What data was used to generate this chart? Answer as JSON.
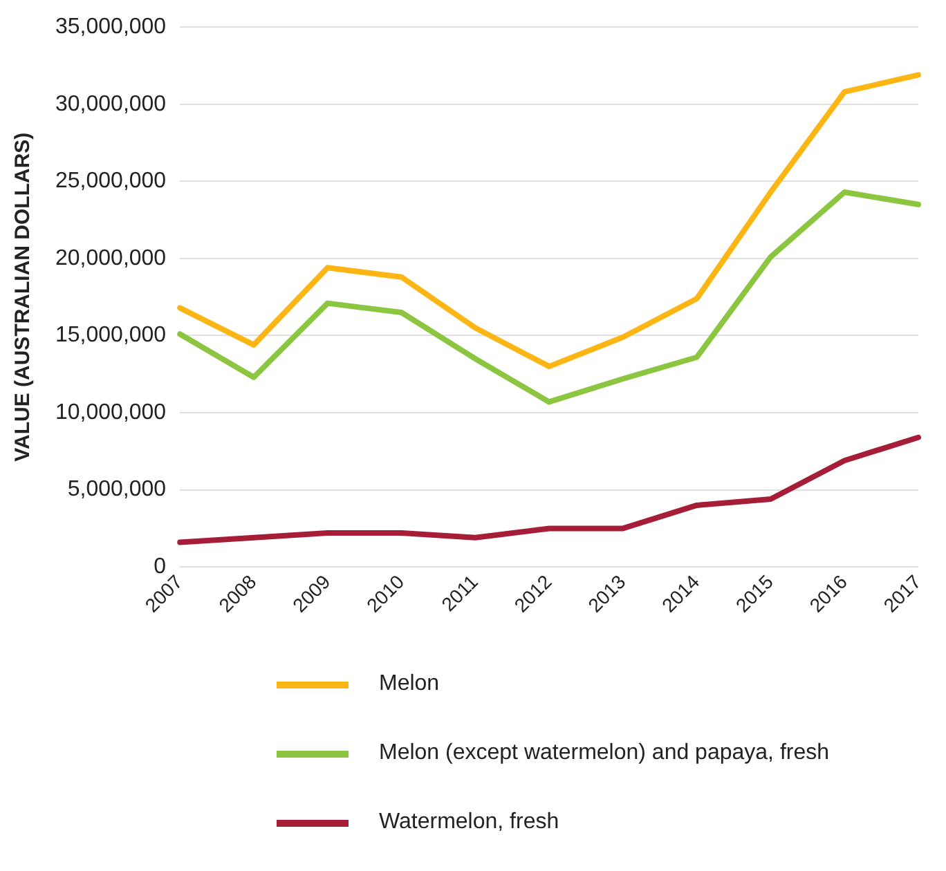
{
  "chart_data": {
    "type": "line",
    "ylabel": "VALUE (AUSTRALIAN DOLLARS)",
    "categories": [
      "2007",
      "2008",
      "2009",
      "2010",
      "2011",
      "2012",
      "2013",
      "2014",
      "2015",
      "2016",
      "2017"
    ],
    "series": [
      {
        "name": "Melon",
        "color": "#fbb616",
        "values": [
          16800000,
          14400000,
          19400000,
          18800000,
          15500000,
          13000000,
          14900000,
          17400000,
          24300000,
          30800000,
          31900000
        ]
      },
      {
        "name": "Melon (except watermelon) and papaya, fresh",
        "color": "#8cc540",
        "values": [
          15100000,
          12300000,
          17100000,
          16500000,
          13500000,
          10700000,
          12200000,
          13600000,
          20100000,
          24300000,
          23500000
        ]
      },
      {
        "name": "Watermelon, fresh",
        "color": "#a51d36",
        "values": [
          1600000,
          1900000,
          2200000,
          2200000,
          1900000,
          2500000,
          2500000,
          4000000,
          4400000,
          6900000,
          8400000
        ]
      }
    ],
    "ylim": [
      0,
      35000000
    ],
    "yticks": [
      0,
      {
        "value": 5000000,
        "label": "5,000,000"
      },
      {
        "value": 10000000,
        "label": "10,000,000"
      },
      {
        "value": 15000000,
        "label": "15,000,000"
      },
      {
        "value": 20000000,
        "label": "20,000,000"
      },
      {
        "value": 25000000,
        "label": "25,000,000"
      },
      {
        "value": 30000000,
        "label": "30,000,000"
      },
      {
        "value": 35000000,
        "label": "35,000,000"
      }
    ],
    "grid": "y",
    "legend": "bottom",
    "marker": "none",
    "line_style": "solid"
  }
}
